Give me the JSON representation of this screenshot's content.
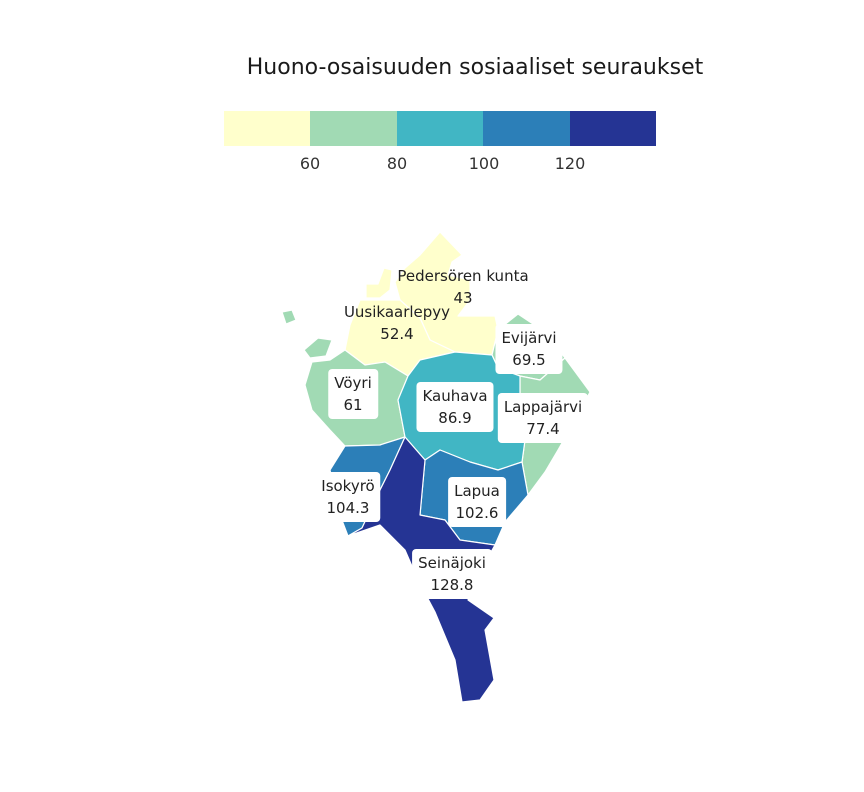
{
  "title": "Huono-osaisuuden sosiaaliset seuraukset",
  "legend": {
    "colors": [
      "#ffffcc",
      "#a1dab4",
      "#41b6c4",
      "#2c7fb8",
      "#253494"
    ],
    "ticks": [
      "60",
      "80",
      "100",
      "120"
    ]
  },
  "chart_data": {
    "type": "choropleth",
    "title": "Huono-osaisuuden sosiaaliset seuraukset",
    "legend_placement": "top",
    "bins": [
      60,
      80,
      100,
      120
    ],
    "regions": [
      {
        "name": "Pedersören kunta",
        "value": 43
      },
      {
        "name": "Uusikaarlepyy",
        "value": 52.4
      },
      {
        "name": "Evijärvi",
        "value": 69.5
      },
      {
        "name": "Vöyri",
        "value": 61
      },
      {
        "name": "Kauhava",
        "value": 86.9
      },
      {
        "name": "Lappajärvi",
        "value": 77.4
      },
      {
        "name": "Isokyrö",
        "value": 104.3
      },
      {
        "name": "Lapua",
        "value": 102.6
      },
      {
        "name": "Seinäjoki",
        "value": 128.8
      }
    ]
  },
  "labels": {
    "pedersoren": {
      "name": "Pedersören kunta",
      "value": "43"
    },
    "uusikaarlepyy": {
      "name": "Uusikaarlepyy",
      "value": "52.4"
    },
    "evijarvi": {
      "name": "Evijärvi",
      "value": "69.5"
    },
    "voyri": {
      "name": "Vöyri",
      "value": "61"
    },
    "kauhava": {
      "name": "Kauhava",
      "value": "86.9"
    },
    "lappajarvi": {
      "name": "Lappajärvi",
      "value": "77.4"
    },
    "isokyro": {
      "name": "Isokyrö",
      "value": "104.3"
    },
    "lapua": {
      "name": "Lapua",
      "value": "102.6"
    },
    "seinajoki": {
      "name": "Seinäjoki",
      "value": "128.8"
    }
  }
}
